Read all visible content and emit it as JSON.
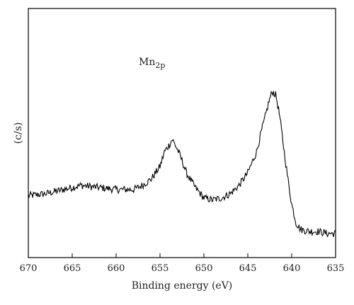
{
  "chart_data": {
    "type": "line",
    "xlabel": "Binding energy (eV)",
    "ylabel": "(c/s)",
    "xlim": [
      670,
      635
    ],
    "x_reversed": true,
    "xticks": [
      670,
      665,
      660,
      655,
      650,
      645,
      640,
      635
    ],
    "y_ticks_shown": false,
    "ylim": [
      0,
      1
    ],
    "annotation": {
      "base": "Mn",
      "subscript": "2p"
    },
    "grid": false,
    "legend": "none",
    "line_color": "#000000",
    "series": [
      {
        "x": [
          670,
          668,
          666,
          664,
          662,
          660,
          658,
          657,
          656,
          655,
          654.5,
          654,
          653.6,
          653,
          652.5,
          652,
          651,
          650,
          649,
          648,
          647,
          646,
          645,
          644,
          643.5,
          643,
          642.6,
          642.2,
          641.8,
          641.4,
          641,
          640.5,
          640,
          639.5,
          639,
          638,
          637,
          636,
          635
        ],
        "y": [
          0.2,
          0.21,
          0.23,
          0.25,
          0.24,
          0.23,
          0.23,
          0.25,
          0.28,
          0.34,
          0.41,
          0.44,
          0.47,
          0.42,
          0.37,
          0.31,
          0.24,
          0.19,
          0.18,
          0.19,
          0.21,
          0.25,
          0.31,
          0.41,
          0.5,
          0.58,
          0.65,
          0.7,
          0.68,
          0.59,
          0.46,
          0.3,
          0.16,
          0.07,
          0.04,
          0.03,
          0.03,
          0.02,
          0.02
        ]
      }
    ]
  }
}
